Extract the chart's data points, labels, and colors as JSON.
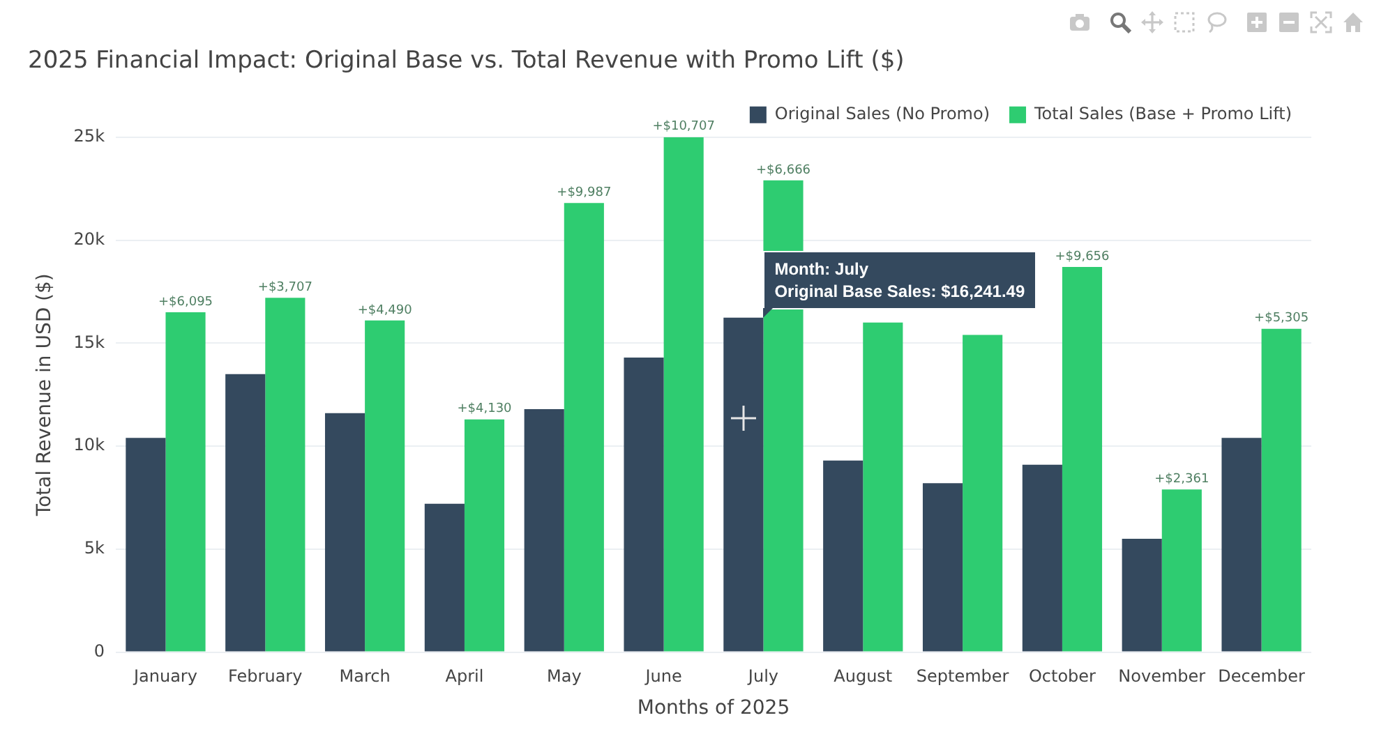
{
  "chart_data": {
    "type": "bar",
    "title": "2025 Financial Impact: Original Base vs. Total Revenue with Promo Lift ($)",
    "xlabel": "Months of 2025",
    "ylabel": "Total Revenue in USD ($)",
    "categories": [
      "January",
      "February",
      "March",
      "April",
      "May",
      "June",
      "July",
      "August",
      "September",
      "October",
      "November",
      "December"
    ],
    "series": [
      {
        "name": "Original Sales (No Promo)",
        "color": "#34495e",
        "values": [
          10400,
          13500,
          11600,
          7200,
          11800,
          14300,
          16241.49,
          9300,
          8200,
          9100,
          5500,
          10400
        ]
      },
      {
        "name": "Total Sales (Base + Promo Lift)",
        "color": "#2ecc71",
        "values": [
          16500,
          17200,
          16100,
          11300,
          21800,
          25000,
          22900,
          16000,
          15400,
          18700,
          7900,
          15700
        ]
      }
    ],
    "ylim": [
      0,
      25000
    ],
    "yticks": [
      0,
      {
        "value": 5000,
        "label": "5k"
      },
      {
        "value": 10000,
        "label": "10k"
      },
      {
        "value": 15000,
        "label": "15k"
      },
      {
        "value": 20000,
        "label": "20k"
      },
      {
        "value": 25000,
        "label": "25k"
      }
    ],
    "grid": "y",
    "legend": "top right",
    "annotations": [
      {
        "text": "+$6,095",
        "x": "January",
        "y": 16500
      },
      {
        "text": "+$3,707",
        "x": "February",
        "y": 17200
      },
      {
        "text": "+$4,490",
        "x": "March",
        "y": 16100
      },
      {
        "text": "+$4,130",
        "x": "April",
        "y": 11300
      },
      {
        "text": "+$9,987",
        "x": "May",
        "y": 21800
      },
      {
        "text": "+$10,707",
        "x": "June",
        "y": 25000
      },
      {
        "text": "+$6,666",
        "x": "July",
        "y": 22900
      },
      {
        "text": "+$9,656",
        "x": "October",
        "y": 18700
      },
      {
        "text": "+$2,361",
        "x": "November",
        "y": 7900
      },
      {
        "text": "+$5,305",
        "x": "December",
        "y": 15700
      },
      {
        "text": "Month: July\nOriginal Base Sales: $16,241.49",
        "x": "July",
        "y": 16241.49
      }
    ]
  }
}
